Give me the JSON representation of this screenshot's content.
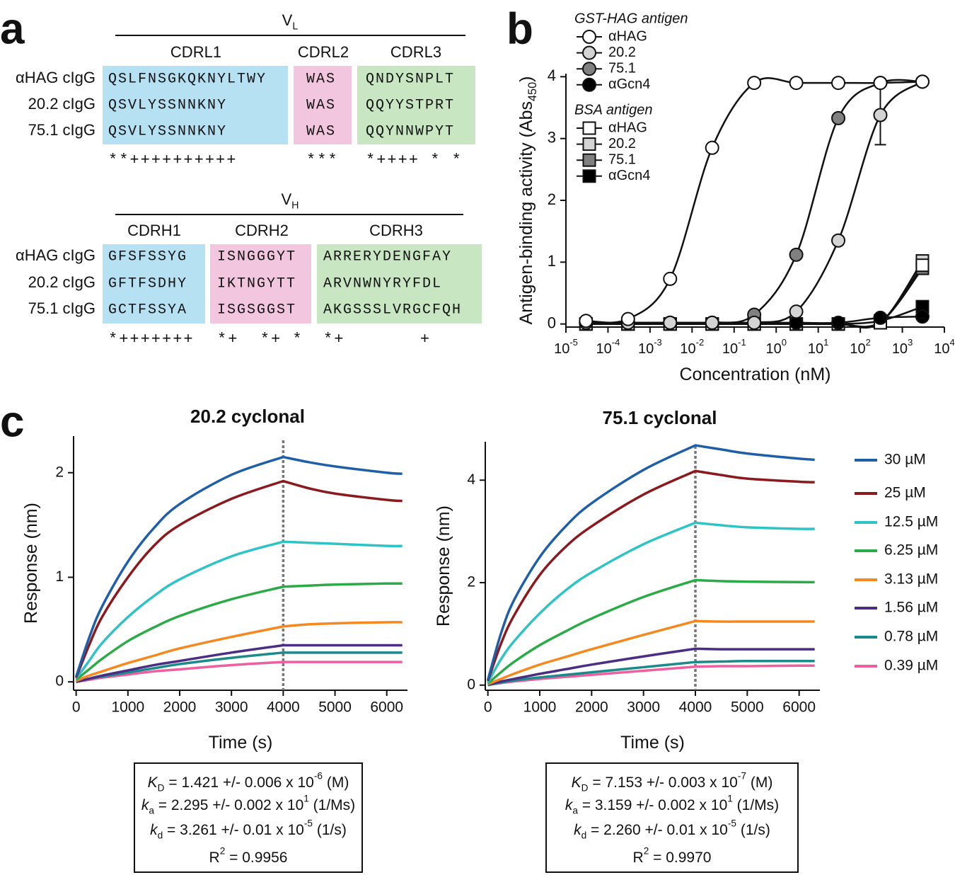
{
  "panel_labels": [
    "a",
    "b",
    "c"
  ],
  "alignment": [
    {
      "title": [
        {
          "t": "V"
        },
        {
          "t": "L",
          "s": "sub"
        }
      ],
      "regions": [
        "CDRL1",
        "CDRL2",
        "CDRL3"
      ],
      "colors": [
        "#b6e1f3",
        "#f3c6e0",
        "#c8e6c2"
      ],
      "rows": [
        {
          "name": "αHAG cIgG",
          "seqs": [
            "QSLFNSGKQKNYLTWY",
            "WAS",
            "QNDYSNPLT"
          ]
        },
        {
          "name": "20.2 cIgG",
          "seqs": [
            "QSVLYSSNNKNY",
            "WAS",
            "QQYYSTPRT"
          ]
        },
        {
          "name": "75.1 cIgG",
          "seqs": [
            "QSVLYSSNNKNY",
            "WAS",
            "QQYNNWPYT"
          ]
        }
      ],
      "conservation": [
        "**++++++++++",
        "***",
        "*++++ * *"
      ]
    },
    {
      "title": [
        {
          "t": "V"
        },
        {
          "t": "H",
          "s": "sub"
        }
      ],
      "regions": [
        "CDRH1",
        "CDRH2",
        "CDRH3"
      ],
      "colors": [
        "#b6e1f3",
        "#f3c6e0",
        "#c8e6c2"
      ],
      "rows": [
        {
          "name": "αHAG cIgG",
          "seqs": [
            "GFSFSSYG",
            "ISNGGGYT",
            "ARRERYDENGFAY"
          ]
        },
        {
          "name": "20.2 cIgG",
          "seqs": [
            "GFTFSDHY",
            "IKTNGYTT",
            "ARVNWNYRYFDL"
          ]
        },
        {
          "name": "75.1 cIgG",
          "seqs": [
            "GCTFSSYA",
            "ISGSGGST",
            "AKGSSSLVRGCFQH"
          ]
        }
      ],
      "conservation": [
        "*+++++++",
        "*+  *+ *",
        "*+       +"
      ]
    }
  ],
  "chart_data": [
    {
      "type": "line",
      "xscale": "log",
      "x": [
        3e-05,
        0.0003,
        0.003,
        0.03,
        0.3,
        3,
        30,
        300,
        3000
      ],
      "xlim": [
        1e-05,
        10000.0
      ],
      "xticks": [
        {
          "value": 1e-05,
          "label": [
            {
              "t": "10"
            },
            {
              "t": "-5",
              "s": "sup"
            }
          ]
        },
        {
          "value": 0.0001,
          "label": [
            {
              "t": "10"
            },
            {
              "t": "-4",
              "s": "sup"
            }
          ]
        },
        {
          "value": 0.001,
          "label": [
            {
              "t": "10"
            },
            {
              "t": "-3",
              "s": "sup"
            }
          ]
        },
        {
          "value": 0.01,
          "label": [
            {
              "t": "10"
            },
            {
              "t": "-2",
              "s": "sup"
            }
          ]
        },
        {
          "value": 0.1,
          "label": [
            {
              "t": "10"
            },
            {
              "t": "-1",
              "s": "sup"
            }
          ]
        },
        {
          "value": 1,
          "label": [
            {
              "t": "10"
            },
            {
              "t": "0",
              "s": "sup"
            }
          ]
        },
        {
          "value": 10,
          "label": [
            {
              "t": "10"
            },
            {
              "t": "1",
              "s": "sup"
            }
          ]
        },
        {
          "value": 100,
          "label": [
            {
              "t": "10"
            },
            {
              "t": "2",
              "s": "sup"
            }
          ]
        },
        {
          "value": 1000,
          "label": [
            {
              "t": "10"
            },
            {
              "t": "3",
              "s": "sup"
            }
          ]
        },
        {
          "value": 10000,
          "label": [
            {
              "t": "10"
            },
            {
              "t": "4",
              "s": "sup"
            }
          ]
        }
      ],
      "ylim": [
        -0.05,
        4.05
      ],
      "yticks": [
        0,
        1,
        2,
        3,
        4
      ],
      "x_label": [
        {
          "t": "Concentration (nM)"
        }
      ],
      "y_label": [
        {
          "t": "Antigen-binding activity (Abs"
        },
        {
          "t": "450",
          "s": "sub"
        },
        {
          "t": ")"
        }
      ],
      "legend_groups": [
        "GST-HAG antigen",
        "BSA antigen"
      ],
      "series": [
        {
          "name": "αHAG",
          "group": 0,
          "marker": "circle",
          "color": "#ffffff",
          "values": [
            0.05,
            0.08,
            0.73,
            2.85,
            3.9,
            3.9,
            3.9,
            3.9,
            3.92
          ]
        },
        {
          "name": "20.2",
          "group": 0,
          "marker": "circle",
          "color": "#d4d4d4",
          "values": [
            0.02,
            0.02,
            0.02,
            0.02,
            0.02,
            0.2,
            1.35,
            3.38,
            3.92
          ],
          "errors": [
            null,
            null,
            null,
            null,
            null,
            null,
            null,
            0.48,
            null
          ]
        },
        {
          "name": "75.1",
          "group": 0,
          "marker": "circle",
          "color": "#808080",
          "values": [
            0.02,
            0.02,
            0.02,
            0.02,
            0.15,
            1.12,
            3.33,
            3.9,
            3.92
          ]
        },
        {
          "name": "αGcn4",
          "group": 0,
          "marker": "circle",
          "color": "#000000",
          "values": [
            0.02,
            0.02,
            0.02,
            0.02,
            0.02,
            0.02,
            0.02,
            0.1,
            0.12
          ]
        },
        {
          "name": "αHAG",
          "group": 1,
          "marker": "square",
          "color": "#ffffff",
          "values": [
            0,
            0,
            0,
            0,
            0,
            0,
            0,
            0.02,
            0.95
          ]
        },
        {
          "name": "20.2",
          "group": 1,
          "marker": "square",
          "color": "#d4d4d4",
          "values": [
            0,
            0,
            0,
            0,
            0,
            0,
            0,
            0.02,
            1.02
          ]
        },
        {
          "name": "75.1",
          "group": 1,
          "marker": "square",
          "color": "#808080",
          "values": [
            0,
            0,
            0,
            0,
            0,
            0,
            0,
            0.03,
            0.9
          ]
        },
        {
          "name": "αGcn4",
          "group": 1,
          "marker": "square",
          "color": "#000000",
          "values": [
            0,
            0,
            0,
            0,
            0,
            0,
            0,
            0.05,
            0.28
          ]
        }
      ]
    },
    {
      "type": "line",
      "title": "20.2 cyclonal",
      "x": [
        0,
        250,
        500,
        1000,
        1500,
        2000,
        3000,
        4000,
        4500,
        5000,
        6000,
        6300
      ],
      "xlim": [
        -50,
        6400
      ],
      "xticks": [
        0,
        1000,
        2000,
        3000,
        4000,
        5000,
        6000
      ],
      "ylim": [
        -0.08,
        2.35
      ],
      "yticks": [
        0,
        1,
        2
      ],
      "vline": 4000,
      "x_label": [
        {
          "t": "Time (s)"
        }
      ],
      "y_label": [
        {
          "t": "Response (nm)"
        }
      ],
      "series": [
        {
          "color": "#1f5fa8",
          "values": [
            0.05,
            0.42,
            0.72,
            1.15,
            1.47,
            1.7,
            1.98,
            2.15,
            2.1,
            2.06,
            2.0,
            1.99
          ]
        },
        {
          "color": "#8b1a1f",
          "values": [
            0.04,
            0.35,
            0.62,
            1.0,
            1.3,
            1.5,
            1.75,
            1.92,
            1.85,
            1.8,
            1.74,
            1.73
          ]
        },
        {
          "color": "#2ec4c6",
          "values": [
            0.03,
            0.2,
            0.37,
            0.62,
            0.82,
            0.98,
            1.2,
            1.34,
            1.33,
            1.32,
            1.3,
            1.3
          ]
        },
        {
          "color": "#2bab48",
          "values": [
            0.02,
            0.12,
            0.22,
            0.39,
            0.52,
            0.63,
            0.79,
            0.91,
            0.92,
            0.93,
            0.94,
            0.94
          ]
        },
        {
          "color": "#f5891f",
          "values": [
            0.01,
            0.06,
            0.1,
            0.18,
            0.25,
            0.32,
            0.43,
            0.53,
            0.55,
            0.56,
            0.57,
            0.57
          ]
        },
        {
          "color": "#4b2e83",
          "values": [
            0,
            0.03,
            0.06,
            0.11,
            0.16,
            0.2,
            0.28,
            0.35,
            0.35,
            0.35,
            0.35,
            0.35
          ]
        },
        {
          "color": "#1a8a8a",
          "values": [
            0,
            0.03,
            0.05,
            0.09,
            0.13,
            0.17,
            0.23,
            0.28,
            0.28,
            0.28,
            0.28,
            0.28
          ]
        },
        {
          "color": "#ef5fa0",
          "values": [
            0,
            0.02,
            0.04,
            0.07,
            0.1,
            0.12,
            0.16,
            0.19,
            0.19,
            0.19,
            0.19,
            0.19
          ]
        }
      ],
      "fit": [
        [
          {
            "t": "K",
            "s": "i"
          },
          {
            "t": "D",
            "s": "sub"
          },
          {
            "t": " = 1.421 +/- 0.006 x 10"
          },
          {
            "t": "-6",
            "s": "sup"
          },
          {
            "t": " (M)"
          }
        ],
        [
          {
            "t": "k",
            "s": "i"
          },
          {
            "t": "a",
            "s": "sub"
          },
          {
            "t": " = 2.295 +/- 0.002 x 10"
          },
          {
            "t": "1",
            "s": "sup"
          },
          {
            "t": " (1/Ms)"
          }
        ],
        [
          {
            "t": "k",
            "s": "i"
          },
          {
            "t": "d",
            "s": "sub"
          },
          {
            "t": " = 3.261 +/- 0.01 x 10"
          },
          {
            "t": "-5",
            "s": "sup"
          },
          {
            "t": " (1/s)"
          }
        ],
        [
          {
            "t": "R"
          },
          {
            "t": "2",
            "s": "sup"
          },
          {
            "t": " = 0.9956"
          }
        ]
      ]
    },
    {
      "type": "line",
      "title": "75.1 cyclonal",
      "x": [
        0,
        250,
        500,
        1000,
        1500,
        2000,
        3000,
        4000,
        4500,
        5000,
        6000,
        6300
      ],
      "xlim": [
        -50,
        6400
      ],
      "xticks": [
        0,
        1000,
        2000,
        3000,
        4000,
        5000,
        6000
      ],
      "ylim": [
        -0.1,
        4.75
      ],
      "yticks": [
        0,
        2,
        4
      ],
      "vline": 4000,
      "x_label": [
        {
          "t": "Time (s)"
        }
      ],
      "y_label": [
        {
          "t": "Response (nm)"
        }
      ],
      "legend": true,
      "series": [
        {
          "name": "30 µM",
          "color": "#1f5fa8",
          "values": [
            0.1,
            1.0,
            1.65,
            2.5,
            3.1,
            3.55,
            4.2,
            4.68,
            4.6,
            4.52,
            4.42,
            4.4
          ]
        },
        {
          "name": "25 µM",
          "color": "#8b1a1f",
          "values": [
            0.08,
            0.8,
            1.35,
            2.15,
            2.7,
            3.1,
            3.72,
            4.18,
            4.1,
            4.03,
            3.97,
            3.96
          ]
        },
        {
          "name": "12.5 µM",
          "color": "#2ec4c6",
          "values": [
            0.05,
            0.5,
            0.85,
            1.4,
            1.85,
            2.2,
            2.75,
            3.17,
            3.12,
            3.08,
            3.05,
            3.05
          ]
        },
        {
          "name": "6.25 µM",
          "color": "#2bab48",
          "values": [
            0.03,
            0.25,
            0.45,
            0.78,
            1.05,
            1.3,
            1.72,
            2.05,
            2.03,
            2.02,
            2.01,
            2.01
          ]
        },
        {
          "name": "3.13 µM",
          "color": "#f5891f",
          "values": [
            0.02,
            0.12,
            0.22,
            0.4,
            0.55,
            0.7,
            0.98,
            1.25,
            1.24,
            1.24,
            1.24,
            1.24
          ]
        },
        {
          "name": "1.56 µM",
          "color": "#4b2e83",
          "values": [
            0.01,
            0.07,
            0.12,
            0.22,
            0.31,
            0.4,
            0.56,
            0.71,
            0.7,
            0.7,
            0.7,
            0.7
          ]
        },
        {
          "name": "0.78 µM",
          "color": "#1a8a8a",
          "values": [
            0,
            0.05,
            0.09,
            0.15,
            0.2,
            0.25,
            0.35,
            0.45,
            0.46,
            0.47,
            0.47,
            0.47
          ]
        },
        {
          "name": "0.39 µM",
          "color": "#ef5fa0",
          "values": [
            0,
            0.04,
            0.07,
            0.12,
            0.16,
            0.2,
            0.28,
            0.36,
            0.37,
            0.37,
            0.38,
            0.38
          ]
        }
      ],
      "fit": [
        [
          {
            "t": "K",
            "s": "i"
          },
          {
            "t": "D",
            "s": "sub"
          },
          {
            "t": " = 7.153 +/- 0.003 x 10"
          },
          {
            "t": "-7",
            "s": "sup"
          },
          {
            "t": " (M)"
          }
        ],
        [
          {
            "t": "k",
            "s": "i"
          },
          {
            "t": "a",
            "s": "sub"
          },
          {
            "t": " = 3.159 +/- 0.002 x 10"
          },
          {
            "t": "1",
            "s": "sup"
          },
          {
            "t": " (1/Ms)"
          }
        ],
        [
          {
            "t": "k",
            "s": "i"
          },
          {
            "t": "d",
            "s": "sub"
          },
          {
            "t": " = 2.260 +/- 0.01 x 10"
          },
          {
            "t": "-5",
            "s": "sup"
          },
          {
            "t": " (1/s)"
          }
        ],
        [
          {
            "t": "R"
          },
          {
            "t": "2",
            "s": "sup"
          },
          {
            "t": " = 0.9970"
          }
        ]
      ]
    }
  ]
}
